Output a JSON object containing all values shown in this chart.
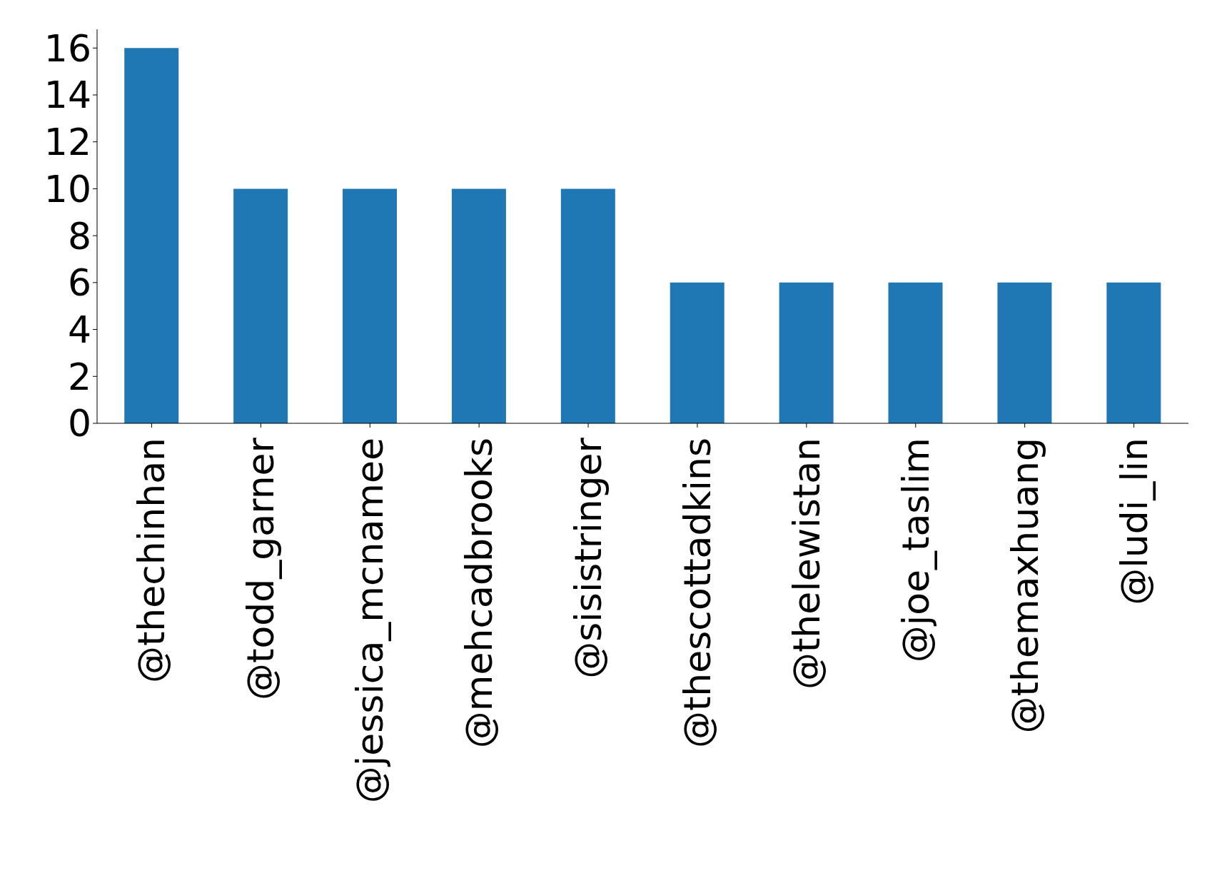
{
  "chart_data": {
    "type": "bar",
    "categories": [
      "@thechinhan",
      "@todd_garner",
      "@jessica_mcnamee",
      "@mehcadbrooks",
      "@sisistringer",
      "@thescottadkins",
      "@thelewistan",
      "@joe_taslim",
      "@themaxhuang",
      "@ludi_lin"
    ],
    "values": [
      16,
      10,
      10,
      10,
      10,
      6,
      6,
      6,
      6,
      6
    ],
    "color": "#1f77b4",
    "ylim": [
      0,
      16.8
    ],
    "yticks": [
      0,
      2,
      4,
      6,
      8,
      10,
      12,
      14,
      16
    ],
    "grid": false,
    "legend": false
  }
}
